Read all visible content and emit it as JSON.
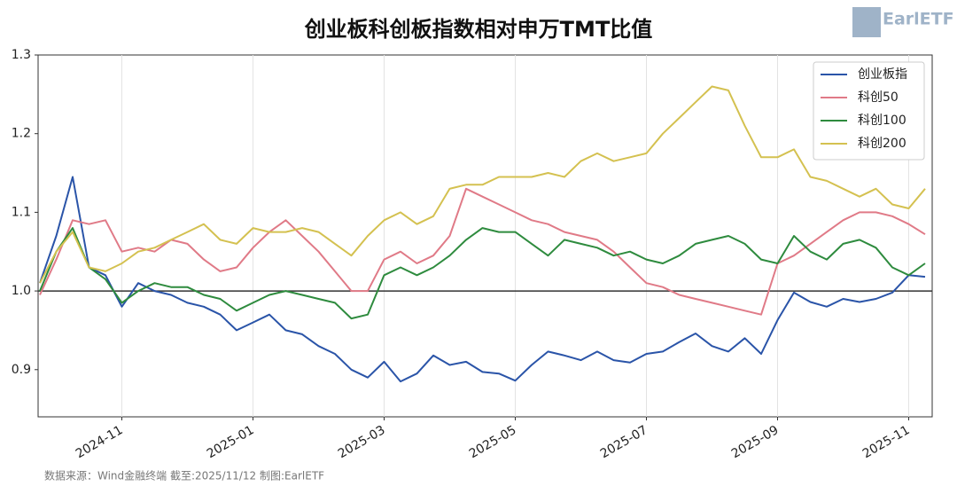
{
  "logo": "EarlETF",
  "chart_data": {
    "type": "line",
    "title": "创业板科创板指数相对申万TMT比值",
    "source": "数据来源：Wind金融终端 截至:2025/11/12 制图:EarlETF",
    "categories": [
      null,
      null,
      null,
      null,
      null,
      "2024-11",
      null,
      null,
      null,
      null,
      null,
      null,
      null,
      "2025-01",
      null,
      null,
      null,
      null,
      null,
      null,
      null,
      "2025-03",
      null,
      null,
      null,
      null,
      null,
      null,
      null,
      "2025-05",
      null,
      null,
      null,
      null,
      null,
      null,
      null,
      "2025-07",
      null,
      null,
      null,
      null,
      null,
      null,
      null,
      "2025-09",
      null,
      null,
      null,
      null,
      null,
      null,
      null,
      "2025-11",
      null
    ],
    "series": [
      {
        "name": "创业板指",
        "color": "#2a54a8",
        "values": [
          1.01,
          1.07,
          1.145,
          1.03,
          1.02,
          0.98,
          1.01,
          1.0,
          0.995,
          0.985,
          0.98,
          0.97,
          0.95,
          0.96,
          0.97,
          0.95,
          0.945,
          0.93,
          0.92,
          0.9,
          0.89,
          0.91,
          0.885,
          0.895,
          0.918,
          0.906,
          0.91,
          0.897,
          0.895,
          0.886,
          0.906,
          0.923,
          0.918,
          0.912,
          0.923,
          0.912,
          0.909,
          0.92,
          0.923,
          0.935,
          0.946,
          0.93,
          0.923,
          0.94,
          0.92,
          0.963,
          0.998,
          0.986,
          0.98,
          0.99,
          0.986,
          0.99,
          0.998,
          1.02,
          1.018
        ]
      },
      {
        "name": "科创50",
        "color": "#e07a87",
        "values": [
          0.995,
          1.04,
          1.09,
          1.085,
          1.09,
          1.05,
          1.055,
          1.05,
          1.065,
          1.06,
          1.04,
          1.025,
          1.03,
          1.055,
          1.075,
          1.09,
          1.07,
          1.05,
          1.025,
          1.0,
          1.0,
          1.04,
          1.05,
          1.035,
          1.045,
          1.07,
          1.13,
          1.12,
          1.11,
          1.1,
          1.09,
          1.085,
          1.075,
          1.07,
          1.065,
          1.05,
          1.03,
          1.01,
          1.005,
          0.995,
          0.99,
          0.985,
          0.98,
          0.975,
          0.97,
          1.035,
          1.045,
          1.06,
          1.075,
          1.09,
          1.1,
          1.1,
          1.095,
          1.085,
          1.072
        ]
      },
      {
        "name": "科创100",
        "color": "#2e8b3e",
        "values": [
          1.0,
          1.05,
          1.08,
          1.03,
          1.015,
          0.985,
          1.0,
          1.01,
          1.005,
          1.005,
          0.995,
          0.99,
          0.975,
          0.985,
          0.995,
          1.0,
          0.995,
          0.99,
          0.985,
          0.965,
          0.97,
          1.02,
          1.03,
          1.02,
          1.03,
          1.045,
          1.065,
          1.08,
          1.075,
          1.075,
          1.06,
          1.045,
          1.065,
          1.06,
          1.055,
          1.045,
          1.05,
          1.04,
          1.035,
          1.045,
          1.06,
          1.065,
          1.07,
          1.06,
          1.04,
          1.035,
          1.07,
          1.05,
          1.04,
          1.06,
          1.065,
          1.055,
          1.03,
          1.02,
          1.035
        ]
      },
      {
        "name": "科创200",
        "color": "#d4c150",
        "values": [
          1.01,
          1.05,
          1.075,
          1.03,
          1.025,
          1.035,
          1.05,
          1.055,
          1.065,
          1.075,
          1.085,
          1.065,
          1.06,
          1.08,
          1.075,
          1.075,
          1.08,
          1.075,
          1.06,
          1.045,
          1.07,
          1.09,
          1.1,
          1.085,
          1.095,
          1.13,
          1.135,
          1.135,
          1.145,
          1.145,
          1.145,
          1.15,
          1.145,
          1.165,
          1.175,
          1.165,
          1.17,
          1.175,
          1.2,
          1.22,
          1.24,
          1.26,
          1.255,
          1.21,
          1.17,
          1.17,
          1.18,
          1.145,
          1.14,
          1.13,
          1.12,
          1.13,
          1.11,
          1.105,
          1.13
        ]
      }
    ],
    "ylim": [
      0.84,
      1.3
    ],
    "yticks": [
      0.9,
      {
        "value": 1,
        "label": "1.0"
      },
      1.1,
      1.2,
      1.3
    ],
    "hline": 1,
    "grid": "x",
    "legend": "upper right"
  }
}
